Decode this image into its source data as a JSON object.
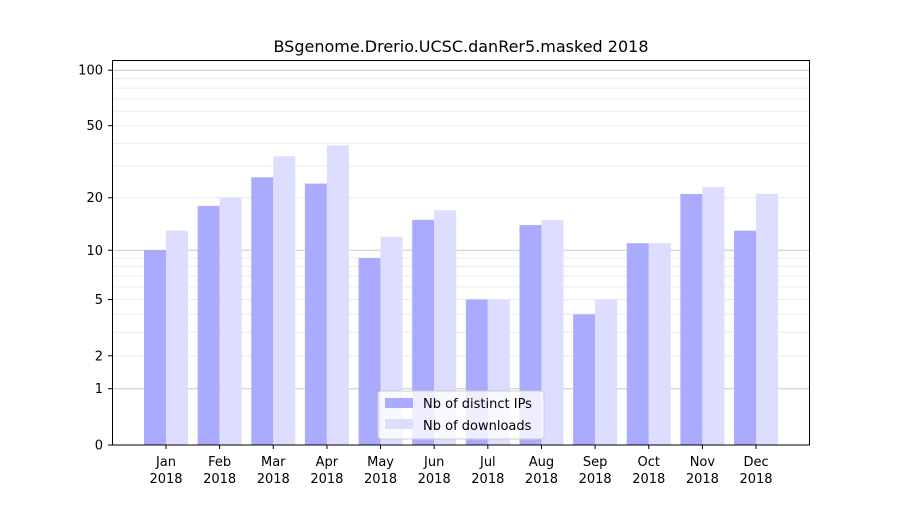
{
  "chart_data": {
    "type": "bar",
    "title": "BSgenome.Drerio.UCSC.danRer5.masked 2018",
    "xlabel": "",
    "ylabel": "",
    "yscale": "log10(1+y)",
    "ylim": [
      0,
      110
    ],
    "yticks": [
      0,
      1,
      2,
      5,
      10,
      20,
      50,
      100
    ],
    "grid": true,
    "legend_position": "bottom-center",
    "categories": [
      [
        "Jan",
        "2018"
      ],
      [
        "Feb",
        "2018"
      ],
      [
        "Mar",
        "2018"
      ],
      [
        "Apr",
        "2018"
      ],
      [
        "May",
        "2018"
      ],
      [
        "Jun",
        "2018"
      ],
      [
        "Jul",
        "2018"
      ],
      [
        "Aug",
        "2018"
      ],
      [
        "Sep",
        "2018"
      ],
      [
        "Oct",
        "2018"
      ],
      [
        "Nov",
        "2018"
      ],
      [
        "Dec",
        "2018"
      ]
    ],
    "series": [
      {
        "name": "Nb of distinct IPs",
        "color": "#aaaaff",
        "values": [
          10,
          18,
          26,
          24,
          9,
          15,
          5,
          14,
          4,
          11,
          21,
          13
        ]
      },
      {
        "name": "Nb of downloads",
        "color": "#ddddff",
        "values": [
          13,
          20,
          34,
          39,
          12,
          17,
          5,
          15,
          5,
          11,
          23,
          21
        ]
      }
    ]
  }
}
